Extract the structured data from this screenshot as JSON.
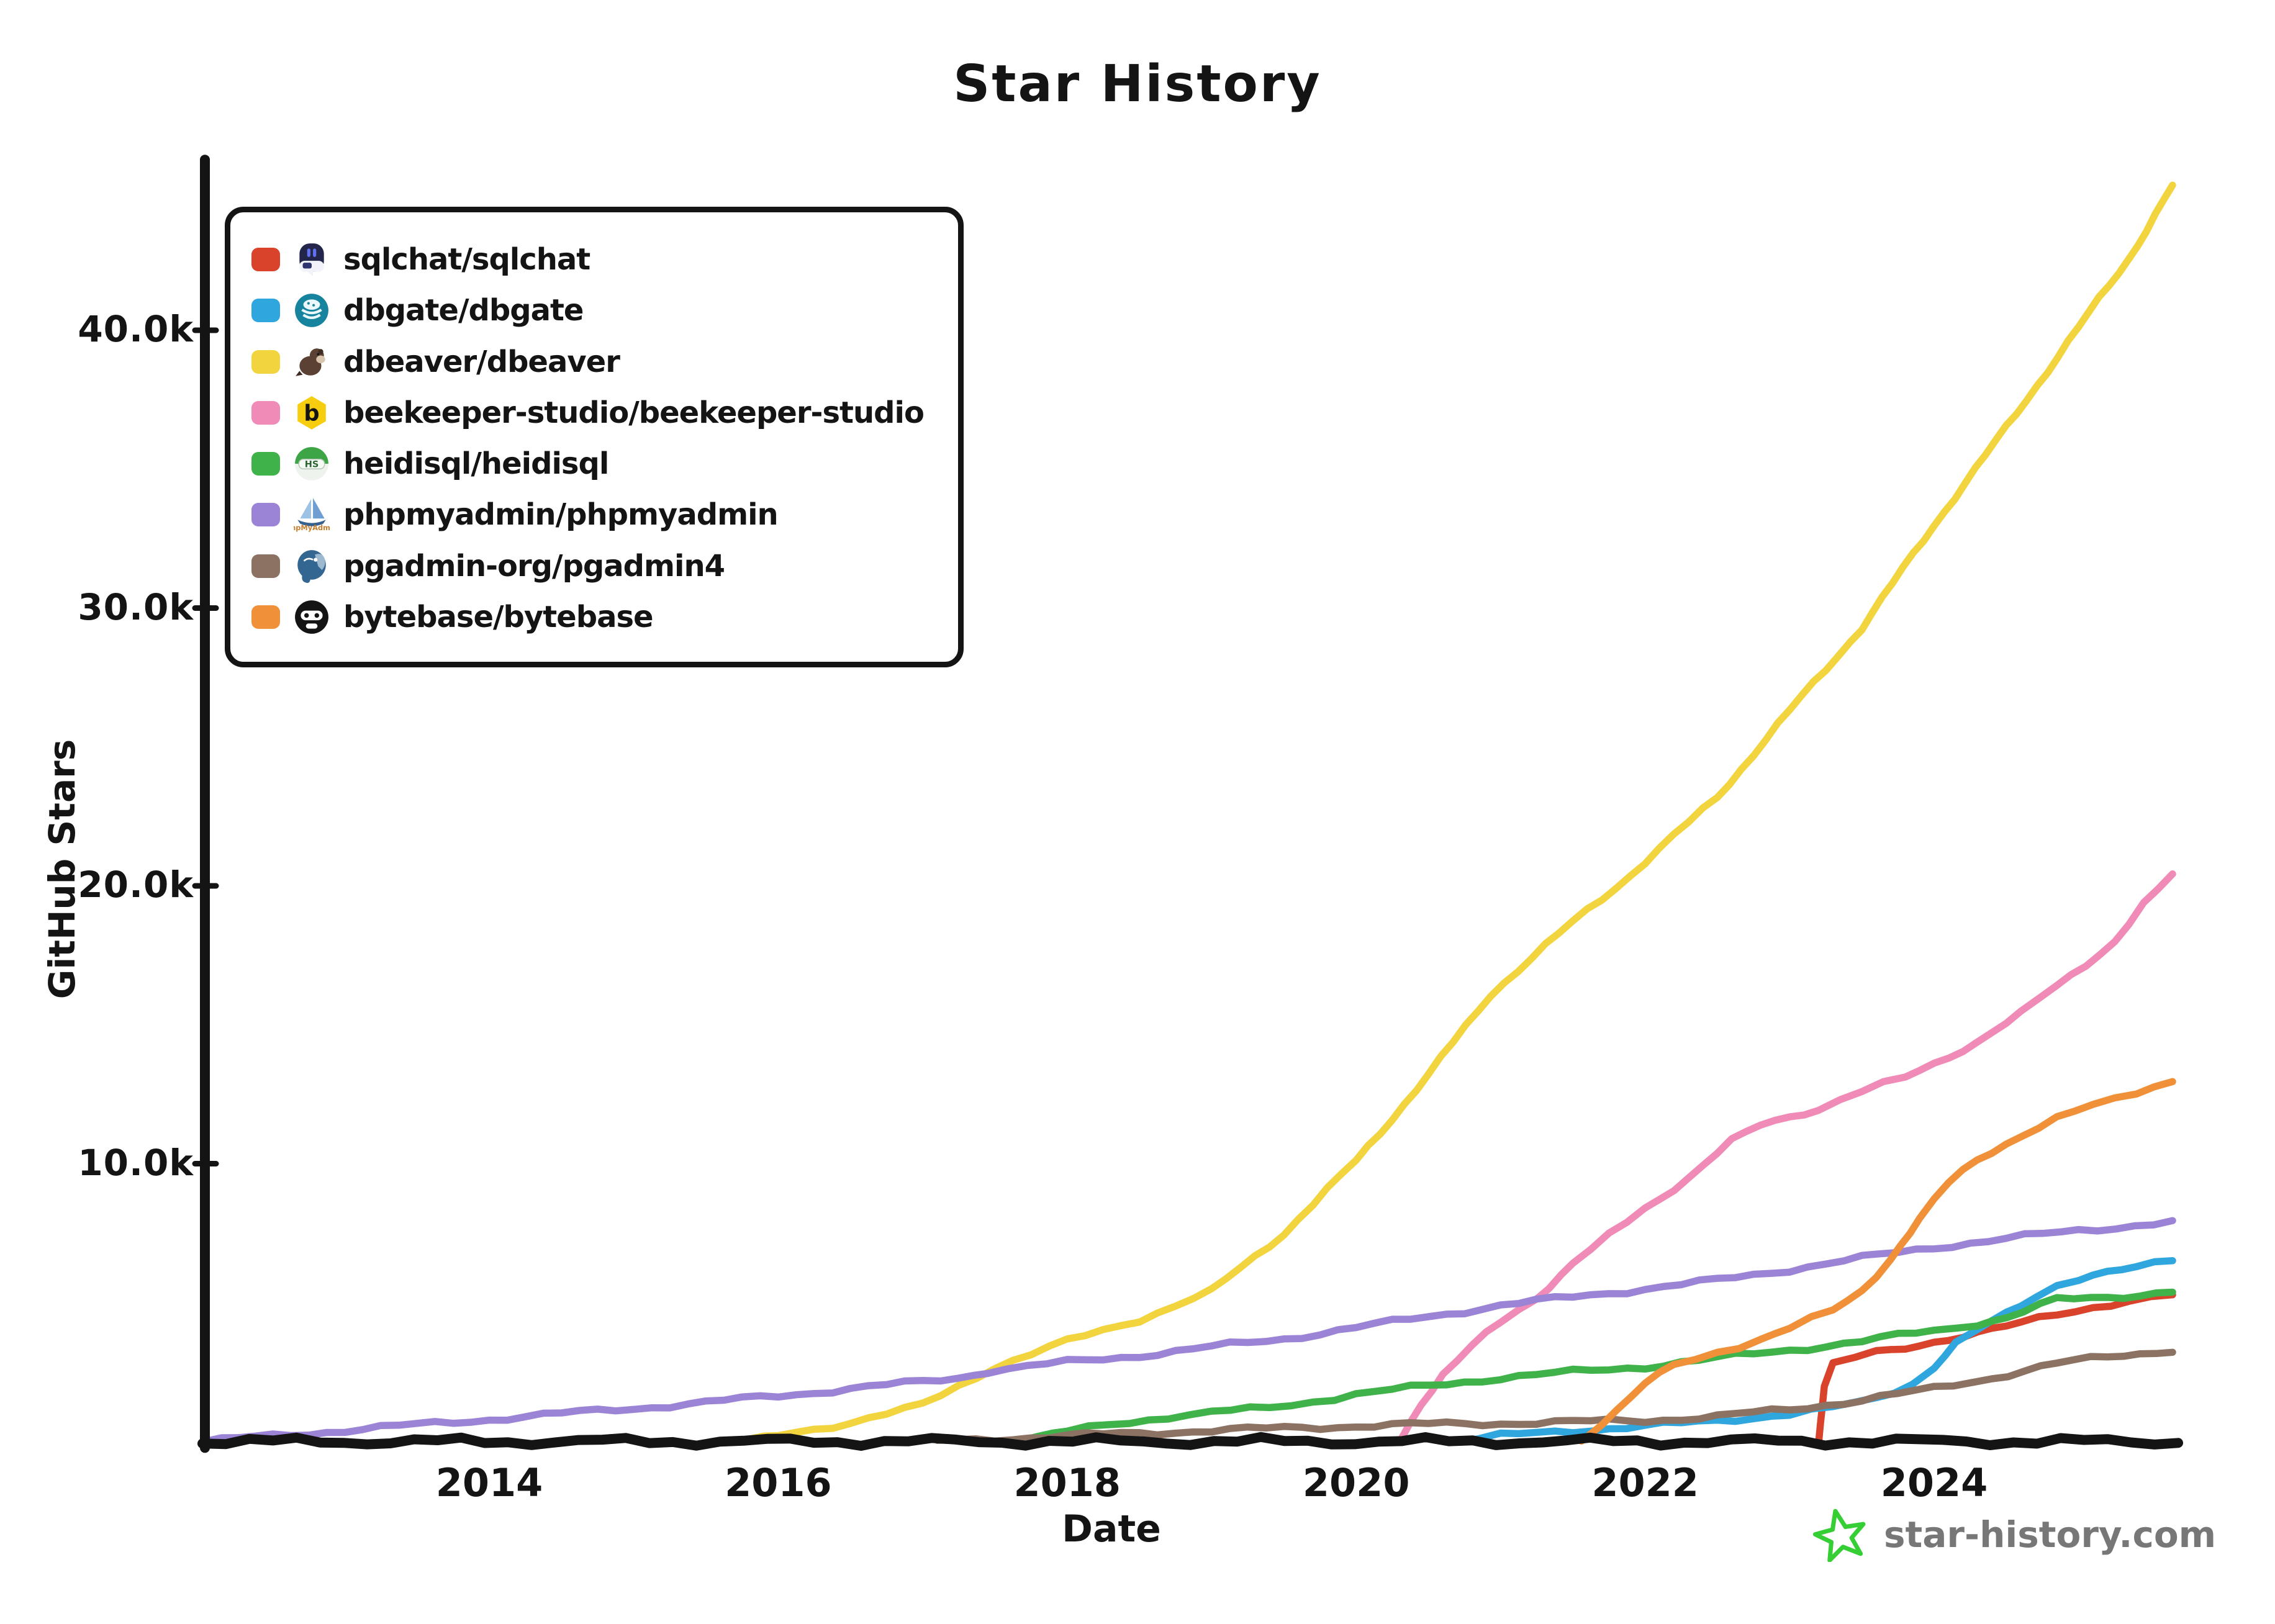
{
  "title": "Star History",
  "axes": {
    "y_label": "GitHub Stars",
    "x_label": "Date",
    "y_ticks": [
      "10.0k",
      "20.0k",
      "30.0k",
      "40.0k"
    ],
    "x_ticks": [
      "2014",
      "2016",
      "2018",
      "2020",
      "2022",
      "2024"
    ]
  },
  "watermark": {
    "text": "star-history.com",
    "star_color": "#35cf35",
    "text_color": "#777777"
  },
  "legend": {
    "items": [
      {
        "label": "sqlchat/sqlchat",
        "color": "#d9432b",
        "icon": "sqlchat-logo"
      },
      {
        "label": "dbgate/dbgate",
        "color": "#2fa7de",
        "icon": "dbgate-logo"
      },
      {
        "label": "dbeaver/dbeaver",
        "color": "#f2d53e",
        "icon": "dbeaver-logo"
      },
      {
        "label": "beekeeper-studio/beekeeper-studio",
        "color": "#f08bb7",
        "icon": "beekeeper-logo"
      },
      {
        "label": "heidisql/heidisql",
        "color": "#3fb24a",
        "icon": "heidisql-logo"
      },
      {
        "label": "phpmyadmin/phpmyadmin",
        "color": "#9b84d6",
        "icon": "phpmyadmin-logo"
      },
      {
        "label": "pgadmin-org/pgadmin4",
        "color": "#8b7262",
        "icon": "pgadmin-logo"
      },
      {
        "label": "bytebase/bytebase",
        "color": "#f0913a",
        "icon": "bytebase-logo"
      }
    ]
  },
  "chart_data": {
    "type": "line",
    "title": "Star History",
    "xlabel": "Date",
    "ylabel": "GitHub Stars",
    "x_range": [
      2012.0,
      2025.7
    ],
    "ylim": [
      0,
      45500
    ],
    "y_tick_values": [
      10000,
      20000,
      30000,
      40000
    ],
    "x_tick_values": [
      2014,
      2016,
      2018,
      2020,
      2022,
      2024
    ],
    "grid": false,
    "legend_position": "top-left",
    "axis_color": "#141414",
    "series": [
      {
        "name": "sqlchat/sqlchat",
        "color": "#d9432b",
        "points": [
          [
            2023.2,
            0
          ],
          [
            2023.24,
            2000
          ],
          [
            2023.3,
            2750
          ],
          [
            2023.45,
            3000
          ],
          [
            2023.6,
            3200
          ],
          [
            2023.8,
            3400
          ],
          [
            2024.0,
            3600
          ],
          [
            2024.2,
            3800
          ],
          [
            2024.4,
            4000
          ],
          [
            2024.6,
            4250
          ],
          [
            2024.85,
            4600
          ],
          [
            2025.1,
            4850
          ],
          [
            2025.35,
            5050
          ],
          [
            2025.65,
            5250
          ]
        ]
      },
      {
        "name": "dbgate/dbgate",
        "color": "#2fa7de",
        "points": [
          [
            2020.7,
            0
          ],
          [
            2021.0,
            200
          ],
          [
            2021.5,
            400
          ],
          [
            2022.0,
            550
          ],
          [
            2022.5,
            750
          ],
          [
            2023.0,
            1000
          ],
          [
            2023.3,
            1200
          ],
          [
            2023.6,
            1550
          ],
          [
            2023.85,
            2100
          ],
          [
            2024.0,
            2700
          ],
          [
            2024.15,
            3500
          ],
          [
            2024.3,
            4000
          ],
          [
            2024.5,
            4600
          ],
          [
            2024.7,
            5250
          ],
          [
            2024.85,
            5650
          ],
          [
            2025.0,
            5850
          ],
          [
            2025.2,
            6050
          ],
          [
            2025.4,
            6250
          ],
          [
            2025.65,
            6550
          ]
        ]
      },
      {
        "name": "dbeaver/dbeaver",
        "color": "#f2d53e",
        "points": [
          [
            2015.8,
            0
          ],
          [
            2016.0,
            200
          ],
          [
            2016.5,
            700
          ],
          [
            2017.0,
            1300
          ],
          [
            2017.5,
            2700
          ],
          [
            2018.0,
            3600
          ],
          [
            2018.5,
            4400
          ],
          [
            2019.0,
            5400
          ],
          [
            2019.5,
            7500
          ],
          [
            2020.0,
            10100
          ],
          [
            2020.5,
            13200
          ],
          [
            2020.93,
            16100
          ],
          [
            2021.5,
            18700
          ],
          [
            2021.9,
            20400
          ],
          [
            2022.5,
            23200
          ],
          [
            2023.0,
            26300
          ],
          [
            2023.5,
            29300
          ],
          [
            2024.0,
            33000
          ],
          [
            2024.5,
            36500
          ],
          [
            2025.0,
            40100
          ],
          [
            2025.35,
            42600
          ],
          [
            2025.65,
            45200
          ]
        ]
      },
      {
        "name": "beekeeper-studio/beekeeper-studio",
        "color": "#f08bb7",
        "points": [
          [
            2020.3,
            0
          ],
          [
            2020.45,
            1400
          ],
          [
            2020.6,
            2400
          ],
          [
            2020.8,
            3400
          ],
          [
            2021.0,
            4300
          ],
          [
            2021.25,
            5200
          ],
          [
            2021.5,
            6400
          ],
          [
            2021.75,
            7400
          ],
          [
            2022.0,
            8400
          ],
          [
            2022.3,
            9500
          ],
          [
            2022.6,
            10800
          ],
          [
            2022.8,
            11400
          ],
          [
            2023.0,
            11700
          ],
          [
            2023.2,
            12000
          ],
          [
            2023.5,
            12600
          ],
          [
            2023.8,
            13100
          ],
          [
            2024.0,
            13600
          ],
          [
            2024.3,
            14400
          ],
          [
            2024.6,
            15400
          ],
          [
            2024.85,
            16400
          ],
          [
            2025.05,
            17200
          ],
          [
            2025.25,
            18000
          ],
          [
            2025.45,
            19300
          ],
          [
            2025.65,
            20400
          ]
        ]
      },
      {
        "name": "heidisql/heidisql",
        "color": "#3fb24a",
        "points": [
          [
            2017.5,
            0
          ],
          [
            2017.8,
            150
          ],
          [
            2018.0,
            350
          ],
          [
            2018.3,
            600
          ],
          [
            2018.7,
            900
          ],
          [
            2019.0,
            1050
          ],
          [
            2019.4,
            1200
          ],
          [
            2019.7,
            1450
          ],
          [
            2020.0,
            1700
          ],
          [
            2020.5,
            2000
          ],
          [
            2021.0,
            2300
          ],
          [
            2021.5,
            2500
          ],
          [
            2022.0,
            2700
          ],
          [
            2022.5,
            3000
          ],
          [
            2023.0,
            3300
          ],
          [
            2023.5,
            3600
          ],
          [
            2024.0,
            4000
          ],
          [
            2024.3,
            4250
          ],
          [
            2024.5,
            4450
          ],
          [
            2024.85,
            5100
          ],
          [
            2025.2,
            5200
          ],
          [
            2025.65,
            5400
          ]
        ]
      },
      {
        "name": "phpmyadmin/phpmyadmin",
        "color": "#9b84d6",
        "points": [
          [
            2012.03,
            0
          ],
          [
            2012.5,
            200
          ],
          [
            2013.0,
            400
          ],
          [
            2013.5,
            600
          ],
          [
            2014.0,
            800
          ],
          [
            2014.5,
            1000
          ],
          [
            2015.0,
            1200
          ],
          [
            2015.5,
            1400
          ],
          [
            2016.0,
            1650
          ],
          [
            2016.5,
            1900
          ],
          [
            2017.0,
            2150
          ],
          [
            2017.25,
            2300
          ],
          [
            2017.45,
            2550
          ],
          [
            2018.0,
            2850
          ],
          [
            2018.5,
            3100
          ],
          [
            2019.0,
            3400
          ],
          [
            2019.5,
            3700
          ],
          [
            2020.0,
            4100
          ],
          [
            2020.5,
            4500
          ],
          [
            2021.0,
            4900
          ],
          [
            2021.5,
            5200
          ],
          [
            2022.0,
            5500
          ],
          [
            2022.5,
            5800
          ],
          [
            2023.0,
            6200
          ],
          [
            2023.5,
            6600
          ],
          [
            2024.0,
            7000
          ],
          [
            2024.5,
            7300
          ],
          [
            2025.0,
            7600
          ],
          [
            2025.65,
            7900
          ]
        ]
      },
      {
        "name": "pgadmin-org/pgadmin4",
        "color": "#8b7262",
        "points": [
          [
            2017.1,
            0
          ],
          [
            2017.5,
            100
          ],
          [
            2018.0,
            200
          ],
          [
            2018.5,
            300
          ],
          [
            2019.0,
            400
          ],
          [
            2019.5,
            480
          ],
          [
            2020.0,
            560
          ],
          [
            2020.5,
            620
          ],
          [
            2021.0,
            660
          ],
          [
            2021.5,
            700
          ],
          [
            2022.0,
            760
          ],
          [
            2022.5,
            900
          ],
          [
            2023.0,
            1150
          ],
          [
            2023.5,
            1500
          ],
          [
            2024.0,
            1900
          ],
          [
            2024.4,
            2300
          ],
          [
            2024.85,
            2800
          ],
          [
            2025.2,
            3050
          ],
          [
            2025.65,
            3300
          ]
        ]
      },
      {
        "name": "bytebase/bytebase",
        "color": "#f0913a",
        "points": [
          [
            2021.56,
            0
          ],
          [
            2021.7,
            700
          ],
          [
            2021.9,
            1600
          ],
          [
            2022.0,
            2100
          ],
          [
            2022.2,
            2700
          ],
          [
            2022.5,
            3200
          ],
          [
            2022.8,
            3700
          ],
          [
            2023.0,
            4100
          ],
          [
            2023.3,
            4700
          ],
          [
            2023.5,
            5400
          ],
          [
            2023.7,
            6600
          ],
          [
            2023.9,
            8000
          ],
          [
            2024.1,
            9300
          ],
          [
            2024.3,
            10200
          ],
          [
            2024.6,
            11000
          ],
          [
            2024.85,
            11600
          ],
          [
            2025.1,
            12100
          ],
          [
            2025.4,
            12600
          ],
          [
            2025.65,
            13000
          ]
        ]
      }
    ]
  }
}
